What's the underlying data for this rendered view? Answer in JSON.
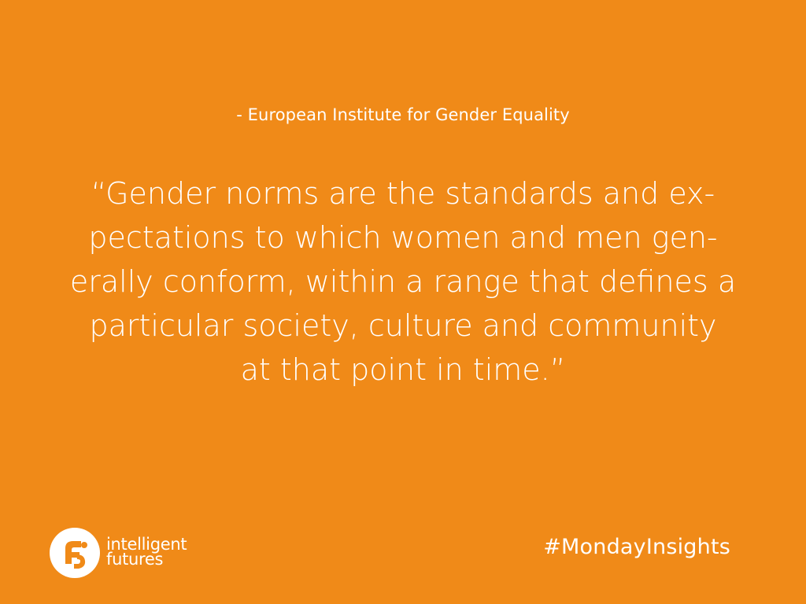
{
  "attribution": "- European Institute for Gender Equality",
  "quote": {
    "lines": [
      "“Gender norms are the standards and ex-",
      "pectations to which women and men gen-",
      "erally conform, within a range that defines a",
      "particular society, culture and community",
      "at that point in time.”"
    ]
  },
  "brand": {
    "name_line1": "intelligent",
    "name_line2": "futures",
    "icon": "intelligent-futures-logo-icon"
  },
  "hashtag": "#MondayInsights",
  "colors": {
    "background": "#F08A18",
    "text": "#FFFFFF"
  }
}
